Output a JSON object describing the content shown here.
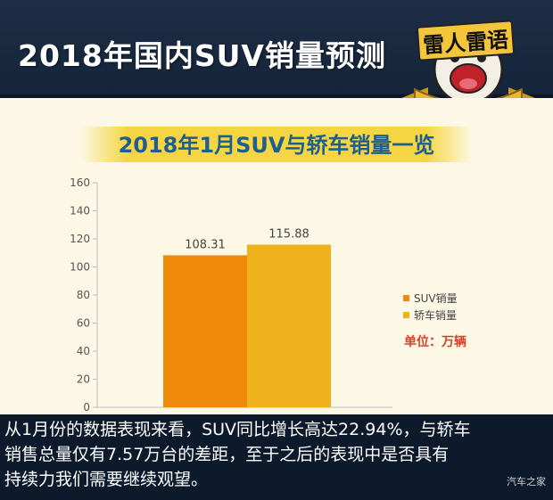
{
  "header": {
    "title": "2018年国内SUV销量预测",
    "logo_text": "雷人雷语"
  },
  "chart_data": {
    "type": "bar",
    "title": "2018年1月SUV与轿车销量一览",
    "categories": [
      ""
    ],
    "series": [
      {
        "name": "SUV销量",
        "values": [
          108.31
        ],
        "color": "#f08a0d"
      },
      {
        "name": "轿车销量",
        "values": [
          115.88
        ],
        "color": "#f0b21c"
      }
    ],
    "data_labels": [
      "108.31",
      "115.88"
    ],
    "ylim": [
      0,
      160
    ],
    "yticks": [
      0,
      20,
      40,
      60,
      80,
      100,
      120,
      140,
      160
    ],
    "grid": false,
    "legend": "right",
    "unit_note": "单位：万辆"
  },
  "bottom": {
    "lines": [
      "从1月份的数据表现来看，SUV同比增长高达22.94%，与轿车",
      "销售总量仅有7.57万台的差距，至于之后的表现中是否具有",
      "持续力我们需要继续观望。"
    ],
    "watermark": "汽车之家"
  }
}
